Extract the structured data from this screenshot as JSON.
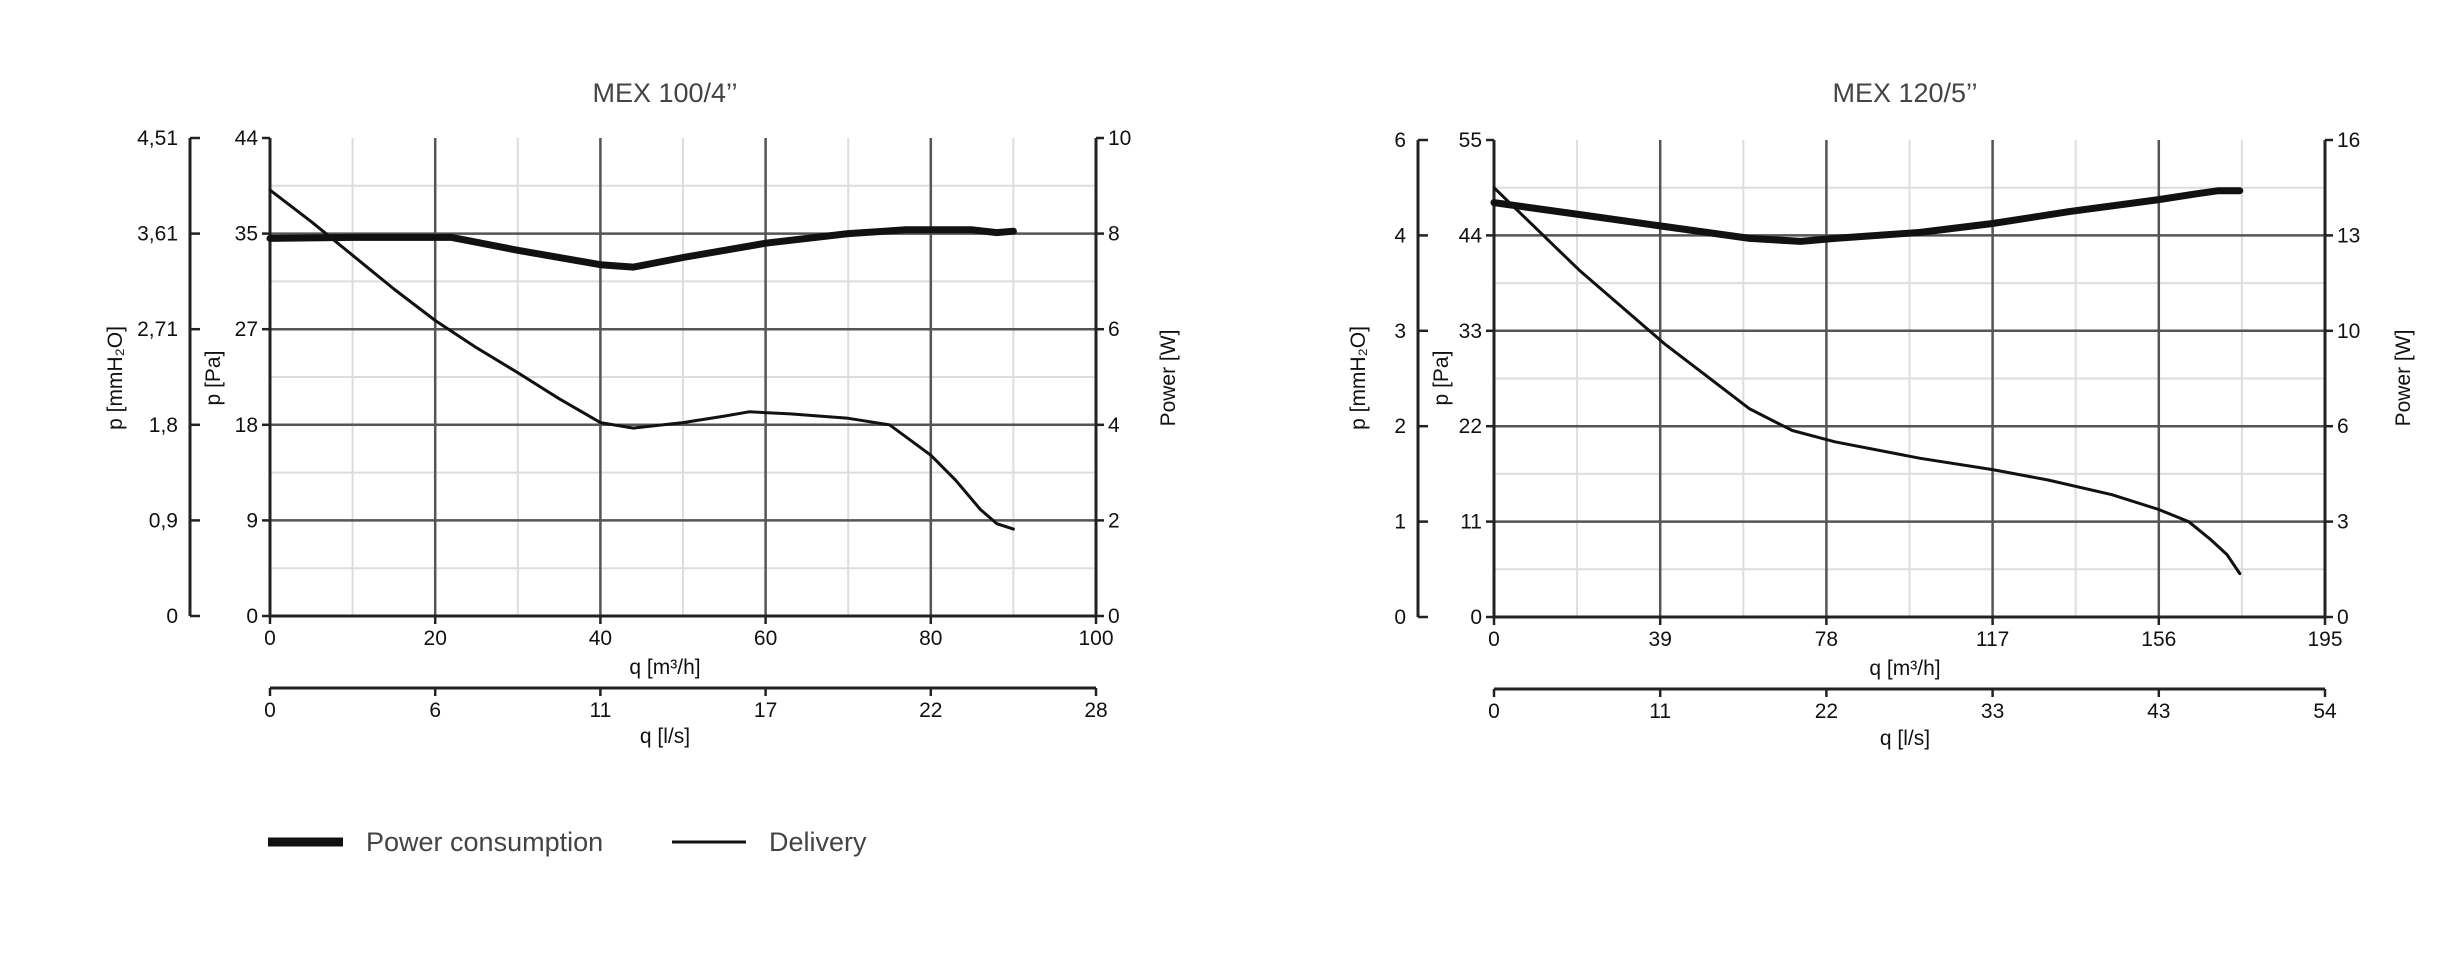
{
  "legend": [
    {
      "label": "Power consumption",
      "style": "thick"
    },
    {
      "label": "Delivery",
      "style": "thin"
    }
  ],
  "colors": {
    "line": "#111111",
    "major_grid": "#555555",
    "minor_grid": "#dddddd",
    "axis": "#222222"
  },
  "chart_data": [
    {
      "type": "line",
      "title": "MEX 100/4’’",
      "grid": true,
      "x_primary": {
        "label": "q [m³/h]",
        "range": [
          0,
          100
        ],
        "ticks": [
          "0",
          "20",
          "40",
          "60",
          "80",
          "100"
        ]
      },
      "x_secondary": {
        "label": "q [l/s]",
        "ticks": [
          "0",
          "6",
          "11",
          "17",
          "22",
          "28"
        ]
      },
      "y_pressure": {
        "label": "p [Pa]",
        "range": [
          0,
          44
        ],
        "ticks": [
          "0",
          "9",
          "18",
          "27",
          "35",
          "44"
        ]
      },
      "y_mmh2o": {
        "label": "p [mmH₂O]",
        "ticks": [
          "0",
          "0,9",
          "1,8",
          "2,71",
          "3,61",
          "4,51"
        ]
      },
      "y_power": {
        "label": "Power [W]",
        "range": [
          0,
          10
        ],
        "ticks": [
          "0",
          "2",
          "4",
          "6",
          "8",
          "10"
        ]
      },
      "series": [
        {
          "name": "Power consumption",
          "axis": "power",
          "width": "thick",
          "x": [
            0,
            10,
            22,
            30,
            40,
            44,
            50,
            60,
            70,
            77,
            85,
            88,
            90
          ],
          "y": [
            7.9,
            7.92,
            7.92,
            7.65,
            7.35,
            7.3,
            7.5,
            7.8,
            8.0,
            8.08,
            8.08,
            8.02,
            8.05
          ]
        },
        {
          "name": "Delivery",
          "axis": "pressure",
          "width": "thin",
          "x": [
            0,
            5,
            10,
            15,
            20,
            25,
            30,
            35,
            40,
            44,
            50,
            55,
            58,
            63,
            70,
            75,
            80,
            83,
            86,
            88,
            90
          ],
          "y": [
            39.2,
            36.3,
            33.2,
            30.1,
            27.2,
            24.7,
            22.4,
            20.0,
            17.8,
            17.3,
            17.8,
            18.4,
            18.8,
            18.6,
            18.2,
            17.6,
            14.8,
            12.5,
            9.8,
            8.5,
            8.0
          ]
        }
      ]
    },
    {
      "type": "line",
      "title": "MEX 120/5’’",
      "grid": true,
      "x_primary": {
        "label": "q [m³/h]",
        "range": [
          0,
          195
        ],
        "ticks": [
          "0",
          "39",
          "78",
          "117",
          "156",
          "195"
        ]
      },
      "x_secondary": {
        "label": "q [l/s]",
        "ticks": [
          "0",
          "11",
          "22",
          "33",
          "43",
          "54"
        ]
      },
      "y_pressure": {
        "label": "p [Pa]",
        "range": [
          0,
          55
        ],
        "ticks": [
          "0",
          "11",
          "22",
          "33",
          "44",
          "55"
        ]
      },
      "y_mmh2o": {
        "label": "p [mmH₂O]",
        "ticks": [
          "0",
          "1",
          "2",
          "3",
          "4",
          "6"
        ]
      },
      "y_power": {
        "label": "Power [W]",
        "range": [
          0,
          16
        ],
        "ticks": [
          "0",
          "3",
          "6",
          "10",
          "13",
          "16"
        ]
      },
      "series": [
        {
          "name": "Power consumption",
          "axis": "power",
          "width": "thick",
          "x": [
            0,
            20,
            40,
            60,
            72,
            80,
            100,
            117,
            135,
            156,
            165,
            170,
            175
          ],
          "y": [
            13.9,
            13.5,
            13.1,
            12.7,
            12.6,
            12.7,
            12.9,
            13.2,
            13.6,
            14.0,
            14.2,
            14.3,
            14.3
          ]
        },
        {
          "name": "Delivery",
          "axis": "pressure",
          "width": "thin",
          "x": [
            0,
            20,
            40,
            60,
            70,
            80,
            100,
            117,
            130,
            145,
            156,
            163,
            168,
            172,
            175
          ],
          "y": [
            49.5,
            40.0,
            31.5,
            24.0,
            21.5,
            20.2,
            18.3,
            17.0,
            15.8,
            14.1,
            12.4,
            11.0,
            9.0,
            7.2,
            5.0
          ]
        }
      ]
    }
  ]
}
